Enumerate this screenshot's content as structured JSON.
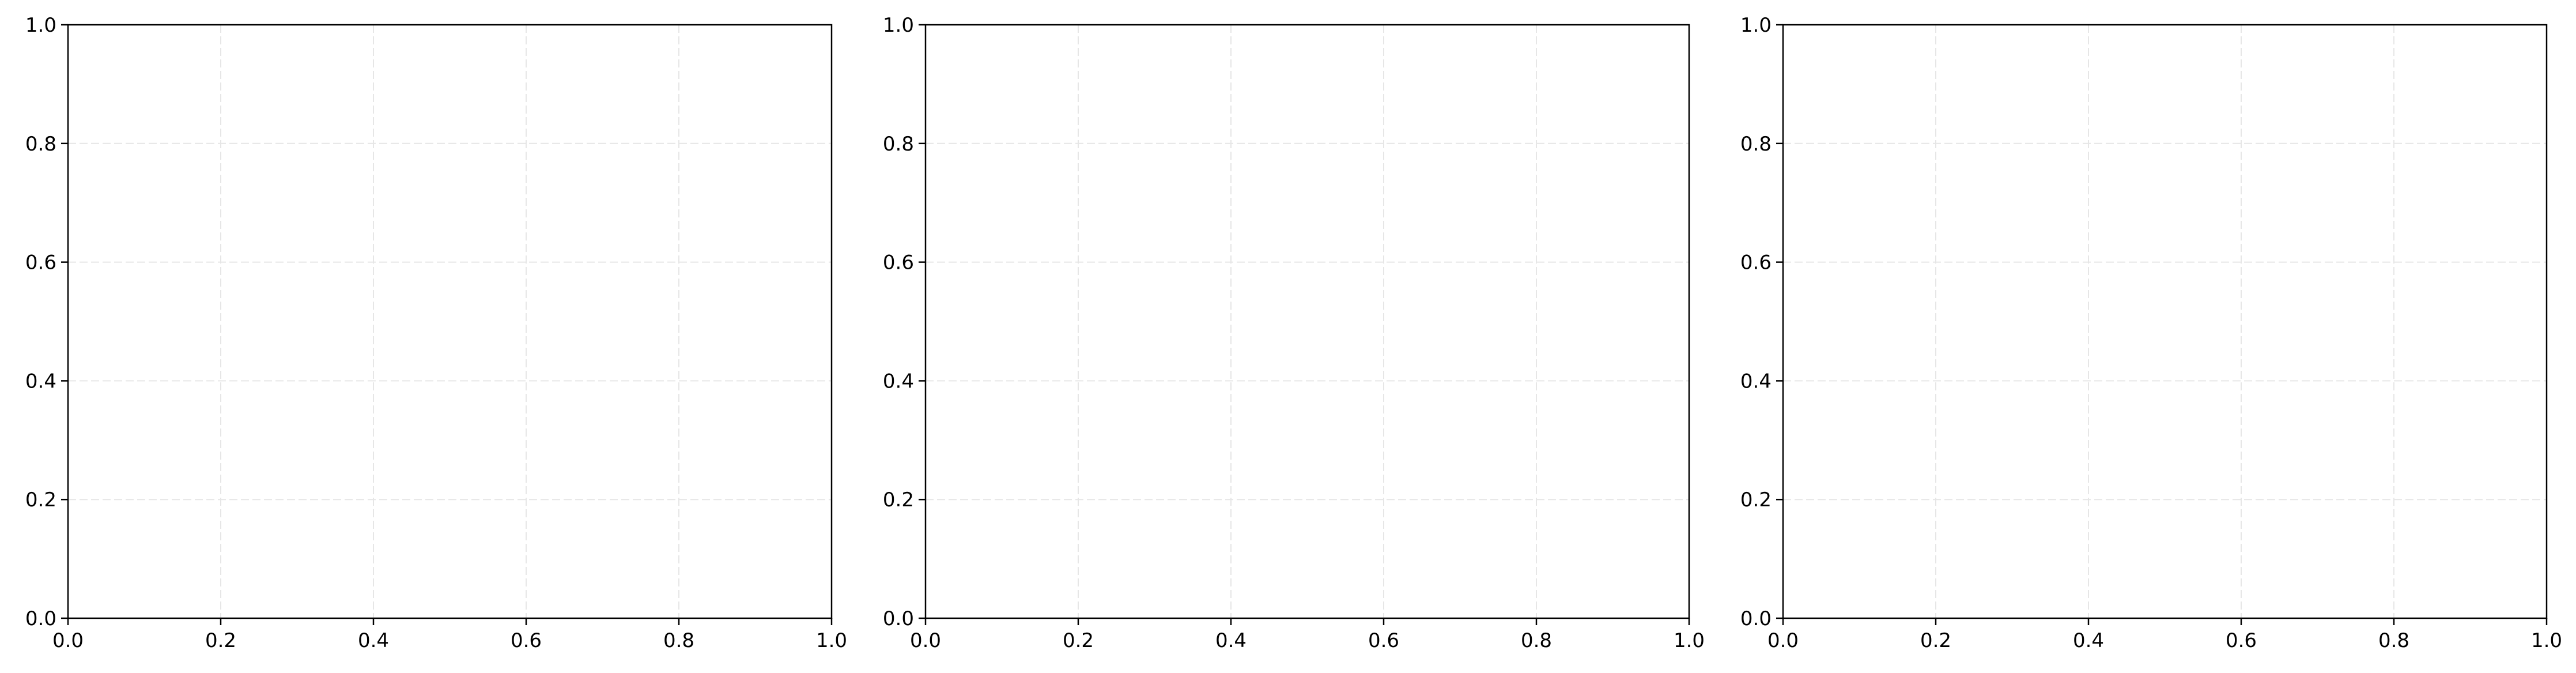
{
  "chart_data": [
    {
      "type": "scatter",
      "title": "",
      "xlabel": "",
      "ylabel": "",
      "xlim": [
        0.0,
        1.0
      ],
      "ylim": [
        0.0,
        1.0
      ],
      "xticks": [
        0.0,
        0.2,
        0.4,
        0.6,
        0.8,
        1.0
      ],
      "yticks": [
        0.0,
        0.2,
        0.4,
        0.6,
        0.8,
        1.0
      ],
      "xtick_labels": [
        "0.0",
        "0.2",
        "0.4",
        "0.6",
        "0.8",
        "1.0"
      ],
      "ytick_labels": [
        "0.0",
        "0.2",
        "0.4",
        "0.6",
        "0.8",
        "1.0"
      ],
      "grid": true,
      "grid_style": "dashed",
      "series": []
    },
    {
      "type": "scatter",
      "title": "",
      "xlabel": "",
      "ylabel": "",
      "xlim": [
        0.0,
        1.0
      ],
      "ylim": [
        0.0,
        1.0
      ],
      "xticks": [
        0.0,
        0.2,
        0.4,
        0.6,
        0.8,
        1.0
      ],
      "yticks": [
        0.0,
        0.2,
        0.4,
        0.6,
        0.8,
        1.0
      ],
      "xtick_labels": [
        "0.0",
        "0.2",
        "0.4",
        "0.6",
        "0.8",
        "1.0"
      ],
      "ytick_labels": [
        "0.0",
        "0.2",
        "0.4",
        "0.6",
        "0.8",
        "1.0"
      ],
      "grid": true,
      "grid_style": "dashed",
      "series": []
    },
    {
      "type": "scatter",
      "title": "",
      "xlabel": "",
      "ylabel": "",
      "xlim": [
        0.0,
        1.0
      ],
      "ylim": [
        0.0,
        1.0
      ],
      "xticks": [
        0.0,
        0.2,
        0.4,
        0.6,
        0.8,
        1.0
      ],
      "yticks": [
        0.0,
        0.2,
        0.4,
        0.6,
        0.8,
        1.0
      ],
      "xtick_labels": [
        "0.0",
        "0.2",
        "0.4",
        "0.6",
        "0.8",
        "1.0"
      ],
      "ytick_labels": [
        "0.0",
        "0.2",
        "0.4",
        "0.6",
        "0.8",
        "1.0"
      ],
      "grid": true,
      "grid_style": "dashed",
      "series": []
    }
  ],
  "colors": {
    "axes": "#000000",
    "grid": "#e6e6e6",
    "background": "#ffffff"
  }
}
